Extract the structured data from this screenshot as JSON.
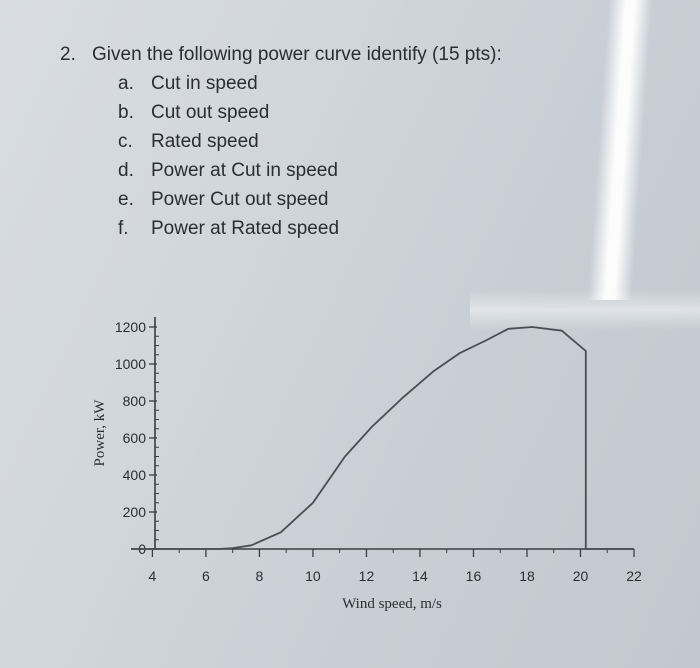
{
  "question": {
    "number": "2.",
    "prompt": "Given the following power curve identify (15 pts):",
    "items": [
      {
        "letter": "a.",
        "text": "Cut in speed"
      },
      {
        "letter": "b.",
        "text": "Cut out speed"
      },
      {
        "letter": "c.",
        "text": "Rated speed"
      },
      {
        "letter": "d.",
        "text": "Power at Cut in speed"
      },
      {
        "letter": "e.",
        "text": "Power Cut out speed"
      },
      {
        "letter": "f.",
        "text": "Power at Rated speed"
      }
    ]
  },
  "chart_data": {
    "type": "line",
    "title": "",
    "xlabel": "Wind speed, m/s",
    "ylabel": "Power, kW",
    "xlim": [
      3.2,
      22
    ],
    "ylim": [
      0,
      1200
    ],
    "xticks": [
      4,
      6,
      8,
      10,
      12,
      14,
      16,
      18,
      20,
      22
    ],
    "yticks": [
      0,
      200,
      400,
      600,
      800,
      1000,
      1200
    ],
    "grid": false,
    "series": [
      {
        "x": [
          3.2,
          6.5,
          7,
          7.7,
          8.8,
          10,
          11.2,
          12.2,
          13.3,
          14.5,
          15.5,
          16.5,
          17.3,
          18.2,
          19.3,
          20.2,
          20.2,
          22
        ],
        "y": [
          0,
          0,
          5,
          20,
          90,
          250,
          500,
          660,
          810,
          960,
          1060,
          1130,
          1190,
          1200,
          1180,
          1070,
          0,
          0
        ]
      }
    ]
  }
}
